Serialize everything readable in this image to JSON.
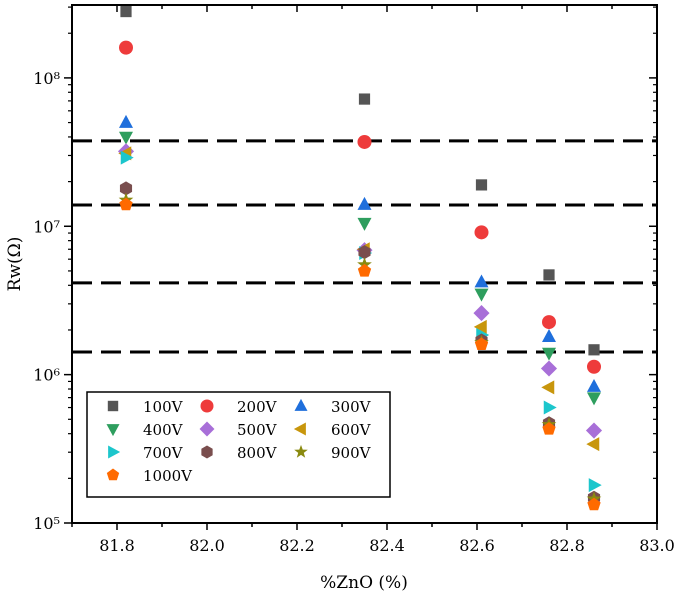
{
  "chart_data": {
    "type": "scatter",
    "title": "",
    "xlabel": "%ZnO (%)",
    "ylabel": "Rw(Ω)",
    "xlim": [
      81.7,
      83.0
    ],
    "ylim": [
      100000,
      310000000
    ],
    "y_scale": "log",
    "grid": false,
    "legend_position": "bottom-left",
    "x_ticks": [
      81.8,
      82.0,
      82.2,
      82.4,
      82.6,
      82.8,
      83.0
    ],
    "x_tick_labels": [
      "81.8",
      "82.0",
      "82.2",
      "82.4",
      "82.6",
      "82.8",
      "83.0"
    ],
    "y_ticks": [
      100000,
      1000000,
      10000000,
      100000000
    ],
    "y_tick_labels": [
      "10⁵",
      "10⁶",
      "10⁷",
      "10⁸"
    ],
    "reference_lines": [
      37600000,
      13900000,
      4150000,
      1420000
    ],
    "x": [
      81.82,
      82.35,
      82.61,
      82.76,
      82.86
    ],
    "series": [
      {
        "name": "100V",
        "marker": "square",
        "color": "#555555",
        "values": [
          280000000,
          72000000,
          19000000,
          4700000,
          1470000
        ]
      },
      {
        "name": "200V",
        "marker": "circle",
        "color": "#ee3b3b",
        "values": [
          160000000,
          37000000,
          9100000,
          2260000,
          1130000
        ]
      },
      {
        "name": "300V",
        "marker": "triangle-up",
        "color": "#1f6fdc",
        "values": [
          50000000,
          14000000,
          4200000,
          1800000,
          830000
        ]
      },
      {
        "name": "400V",
        "marker": "triangle-down",
        "color": "#2e9e5e",
        "values": [
          40000000,
          10500000,
          3500000,
          1400000,
          700000
        ]
      },
      {
        "name": "500V",
        "marker": "diamond",
        "color": "#a86fd8",
        "values": [
          32000000,
          6900000,
          2600000,
          1100000,
          420000
        ]
      },
      {
        "name": "600V",
        "marker": "triangle-left",
        "color": "#c8960c",
        "values": [
          31000000,
          7000000,
          2100000,
          820000,
          340000
        ]
      },
      {
        "name": "700V",
        "marker": "triangle-right",
        "color": "#1cc6cc",
        "values": [
          29000000,
          6600000,
          1850000,
          600000,
          180000
        ]
      },
      {
        "name": "800V",
        "marker": "hexagon",
        "color": "#7a4e4e",
        "values": [
          18000000,
          6700000,
          1700000,
          470000,
          148000
        ]
      },
      {
        "name": "900V",
        "marker": "star",
        "color": "#8a8a10",
        "values": [
          15000000,
          5500000,
          1650000,
          460000,
          145000
        ]
      },
      {
        "name": "1000V",
        "marker": "pentagon",
        "color": "#ff6a00",
        "values": [
          14000000,
          5000000,
          1600000,
          430000,
          133000
        ]
      }
    ]
  }
}
